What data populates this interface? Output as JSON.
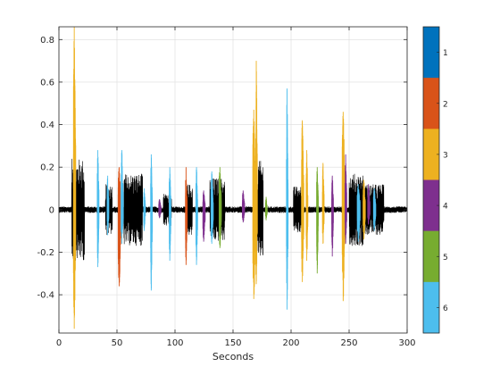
{
  "chart_data": {
    "type": "line",
    "title": "",
    "xlabel": "Seconds",
    "ylabel": "",
    "xlim": [
      0,
      300
    ],
    "ylim": [
      -0.58,
      0.86
    ],
    "x_ticks": [
      0,
      50,
      100,
      150,
      200,
      250,
      300
    ],
    "y_ticks": [
      -0.4,
      -0.2,
      0,
      0.2,
      0.4,
      0.6,
      0.8
    ],
    "grid": true,
    "baseline_series": {
      "color": "#000000",
      "noise_amplitude": 0.015,
      "loud_regions": [
        {
          "x": [
            11,
            22
          ],
          "amp": 0.24
        },
        {
          "x": [
            40,
            46
          ],
          "amp": 0.12
        },
        {
          "x": [
            56,
            72
          ],
          "amp": 0.17
        },
        {
          "x": [
            90,
            97
          ],
          "amp": 0.08
        },
        {
          "x": [
            110,
            115
          ],
          "amp": 0.12
        },
        {
          "x": [
            130,
            143
          ],
          "amp": 0.15
        },
        {
          "x": [
            168,
            176
          ],
          "amp": 0.23
        },
        {
          "x": [
            202,
            210
          ],
          "amp": 0.11
        },
        {
          "x": [
            250,
            262
          ],
          "amp": 0.17
        },
        {
          "x": [
            263,
            280
          ],
          "amp": 0.12
        }
      ]
    },
    "segments": [
      {
        "class": 3,
        "x_start": 12.5,
        "x_end": 14.5,
        "y_max": 0.86,
        "y_min": -0.56
      },
      {
        "class": 6,
        "x_start": 33.0,
        "x_end": 34.5,
        "y_max": 0.28,
        "y_min": -0.27
      },
      {
        "class": 6,
        "x_start": 41.5,
        "x_end": 43.0,
        "y_max": 0.16,
        "y_min": -0.12
      },
      {
        "class": 2,
        "x_start": 51.0,
        "x_end": 53.5,
        "y_max": 0.2,
        "y_min": -0.36
      },
      {
        "class": 6,
        "x_start": 53.5,
        "x_end": 55.5,
        "y_max": 0.28,
        "y_min": -0.16
      },
      {
        "class": 6,
        "x_start": 73.0,
        "x_end": 74.5,
        "y_max": 0.1,
        "y_min": -0.1
      },
      {
        "class": 6,
        "x_start": 79.0,
        "x_end": 80.5,
        "y_max": 0.26,
        "y_min": -0.38
      },
      {
        "class": 4,
        "x_start": 86.0,
        "x_end": 88.0,
        "y_max": 0.05,
        "y_min": -0.04
      },
      {
        "class": 6,
        "x_start": 95.0,
        "x_end": 96.5,
        "y_max": 0.2,
        "y_min": -0.24
      },
      {
        "class": 2,
        "x_start": 109.0,
        "x_end": 110.5,
        "y_max": 0.2,
        "y_min": -0.26
      },
      {
        "class": 6,
        "x_start": 118.0,
        "x_end": 119.5,
        "y_max": 0.2,
        "y_min": -0.26
      },
      {
        "class": 4,
        "x_start": 124.0,
        "x_end": 126.0,
        "y_max": 0.09,
        "y_min": -0.15
      },
      {
        "class": 6,
        "x_start": 131.0,
        "x_end": 133.0,
        "y_max": 0.18,
        "y_min": -0.16
      },
      {
        "class": 5,
        "x_start": 138.0,
        "x_end": 140.0,
        "y_max": 0.2,
        "y_min": -0.18
      },
      {
        "class": 4,
        "x_start": 158.0,
        "x_end": 160.0,
        "y_max": 0.09,
        "y_min": -0.06
      },
      {
        "class": 3,
        "x_start": 167.0,
        "x_end": 169.5,
        "y_max": 0.47,
        "y_min": -0.42
      },
      {
        "class": 3,
        "x_start": 169.5,
        "x_end": 171.0,
        "y_max": 0.7,
        "y_min": -0.35
      },
      {
        "class": 5,
        "x_start": 178.0,
        "x_end": 179.5,
        "y_max": 0.06,
        "y_min": -0.05
      },
      {
        "class": 6,
        "x_start": 196.0,
        "x_end": 197.5,
        "y_max": 0.57,
        "y_min": -0.47
      },
      {
        "class": 3,
        "x_start": 209.0,
        "x_end": 211.0,
        "y_max": 0.42,
        "y_min": -0.34
      },
      {
        "class": 3,
        "x_start": 213.0,
        "x_end": 214.5,
        "y_max": 0.28,
        "y_min": -0.24
      },
      {
        "class": 5,
        "x_start": 222.0,
        "x_end": 223.5,
        "y_max": 0.2,
        "y_min": -0.3
      },
      {
        "class": 3,
        "x_start": 227.0,
        "x_end": 228.5,
        "y_max": 0.22,
        "y_min": -0.16
      },
      {
        "class": 4,
        "x_start": 235.0,
        "x_end": 236.5,
        "y_max": 0.16,
        "y_min": -0.22
      },
      {
        "class": 3,
        "x_start": 244.0,
        "x_end": 246.5,
        "y_max": 0.46,
        "y_min": -0.43
      },
      {
        "class": 4,
        "x_start": 246.5,
        "x_end": 248.0,
        "y_max": 0.26,
        "y_min": -0.16
      },
      {
        "class": 6,
        "x_start": 257.0,
        "x_end": 259.5,
        "y_max": 0.12,
        "y_min": -0.15
      },
      {
        "class": 3,
        "x_start": 262.0,
        "x_end": 264.0,
        "y_max": 0.14,
        "y_min": -0.14
      },
      {
        "class": 4,
        "x_start": 266.0,
        "x_end": 268.0,
        "y_max": 0.12,
        "y_min": -0.07
      },
      {
        "class": 6,
        "x_start": 271.0,
        "x_end": 273.0,
        "y_max": 0.1,
        "y_min": -0.1
      }
    ],
    "colorbar": {
      "labels": [
        "1",
        "2",
        "3",
        "4",
        "5",
        "6"
      ],
      "colors": [
        "#0072BD",
        "#D95319",
        "#EDB120",
        "#7E2F8E",
        "#77AC30",
        "#4DBEEE"
      ]
    },
    "class_colors": {
      "1": "#0072BD",
      "2": "#D95319",
      "3": "#EDB120",
      "4": "#7E2F8E",
      "5": "#77AC30",
      "6": "#4DBEEE"
    }
  }
}
